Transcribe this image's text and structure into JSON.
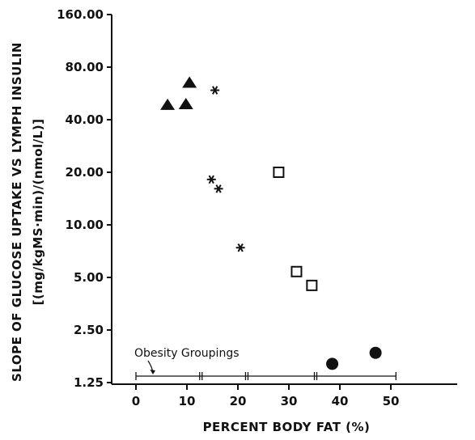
{
  "chart_data": {
    "type": "scatter",
    "xlabel": "PERCENT BODY FAT (%)",
    "ylabel_line1": "SLOPE OF GLUCOSE UPTAKE VS LYMPH INSULIN",
    "ylabel_line2": "[(mg/kgMS·min)/(nmol/L)]",
    "xlim": [
      -3,
      54
    ],
    "x_ticks": [
      0,
      10,
      20,
      30,
      40,
      50
    ],
    "x_tick_labels": [
      "0",
      "10",
      "20",
      "30",
      "40",
      "50"
    ],
    "y_scale": "log",
    "ylim": [
      1.25,
      160
    ],
    "y_ticks": [
      1.25,
      2.5,
      5,
      10,
      20,
      40,
      80,
      160
    ],
    "y_tick_labels": [
      "1.25",
      "2.50",
      "5.00",
      "10.00",
      "20.00",
      "40.00",
      "80.00",
      "160.00"
    ],
    "series": [
      {
        "marker": "triangle",
        "points": [
          [
            6.2,
            48.5
          ],
          [
            9.8,
            49
          ],
          [
            10.5,
            65
          ]
        ]
      },
      {
        "marker": "asterisk",
        "points": [
          [
            15.5,
            59
          ],
          [
            14.8,
            18.2
          ],
          [
            16.2,
            16.1
          ],
          [
            20.5,
            7.4
          ]
        ]
      },
      {
        "marker": "square",
        "points": [
          [
            28,
            20
          ],
          [
            31.5,
            5.4
          ],
          [
            34.5,
            4.5
          ]
        ]
      },
      {
        "marker": "circle",
        "points": [
          [
            38.5,
            1.6
          ],
          [
            47,
            1.85
          ]
        ]
      }
    ],
    "annotation": {
      "label": "Obesity Groupings",
      "boundaries": [
        0,
        12.5,
        21.5,
        35,
        51
      ]
    }
  }
}
